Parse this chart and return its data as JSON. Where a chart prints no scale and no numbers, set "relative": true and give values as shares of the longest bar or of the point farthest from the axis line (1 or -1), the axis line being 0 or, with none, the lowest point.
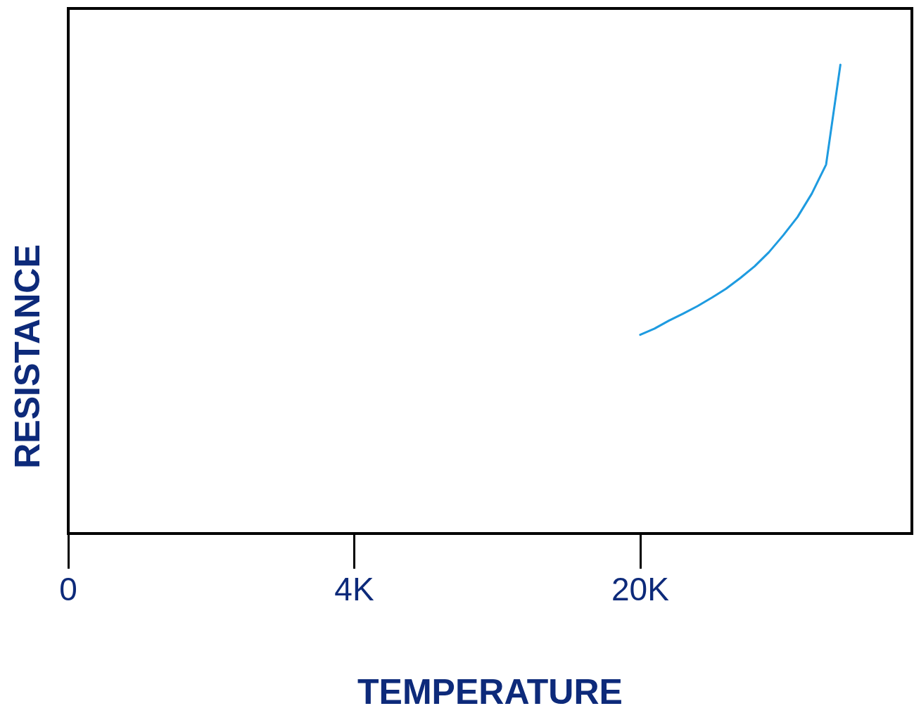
{
  "chart_data": {
    "type": "line",
    "xlabel": "TEMPERATURE",
    "ylabel": "RESISTANCE",
    "relative": true,
    "grid": false,
    "marker": "none",
    "line_style": "solid",
    "categories": [
      "0",
      null,
      null,
      null,
      null,
      null,
      null,
      null,
      null,
      null,
      null,
      null,
      null,
      null,
      null,
      null,
      null,
      null,
      null,
      null,
      "4K",
      null,
      null,
      null,
      null,
      null,
      null,
      null,
      null,
      null,
      null,
      null,
      null,
      null,
      null,
      null,
      null,
      null,
      null,
      null,
      "20K",
      null,
      null,
      null,
      null,
      null,
      null,
      null,
      null,
      null,
      null,
      null,
      null,
      null,
      null,
      null,
      null,
      null,
      null,
      null
    ],
    "series": [
      {
        "color": "#1e9be0",
        "values": [
          null,
          null,
          null,
          null,
          null,
          null,
          null,
          null,
          null,
          null,
          null,
          null,
          null,
          null,
          null,
          null,
          null,
          null,
          null,
          null,
          null,
          null,
          null,
          null,
          null,
          null,
          null,
          null,
          null,
          null,
          null,
          null,
          null,
          null,
          null,
          null,
          null,
          null,
          null,
          null,
          0.424,
          0.437,
          0.454,
          0.469,
          0.485,
          0.503,
          0.522,
          0.545,
          0.57,
          0.6,
          0.636,
          0.675,
          0.725,
          0.787,
          1,
          null,
          null,
          null,
          null,
          null
        ]
      }
    ]
  }
}
